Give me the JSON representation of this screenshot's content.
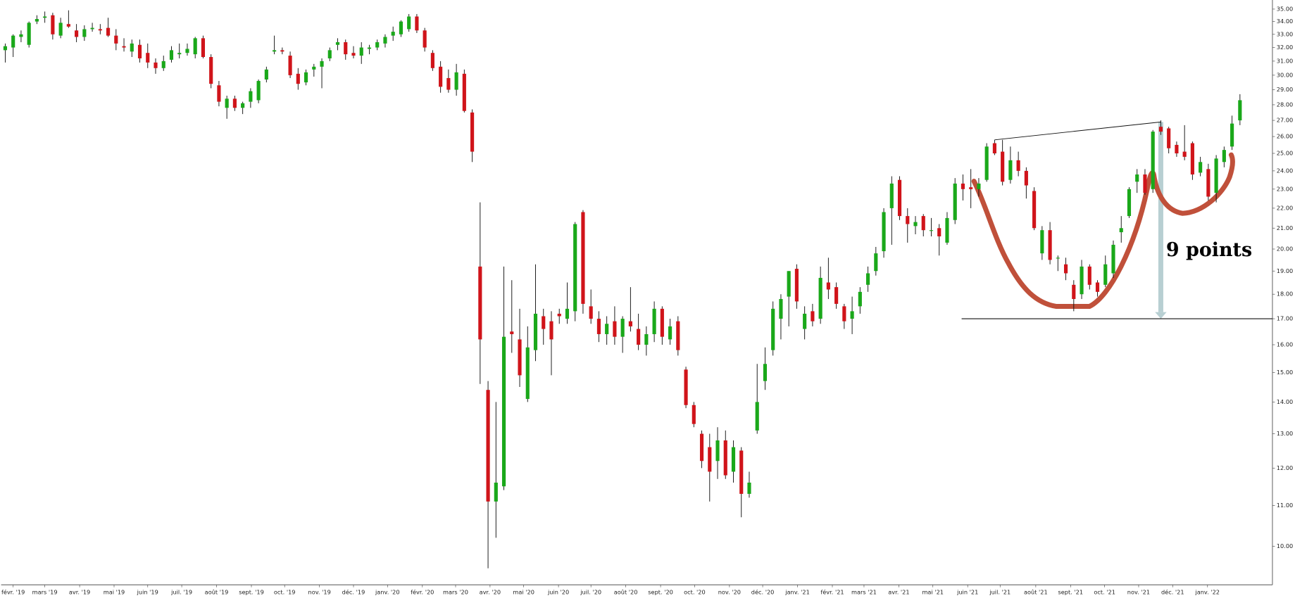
{
  "chart_data": {
    "type": "candlestick",
    "annotation": "9 points",
    "log_scale": true,
    "up_color": "#1aa81a",
    "down_color": "#d0141a",
    "ylim": [
      9.14,
      35.75
    ],
    "yticks": [
      {
        "value": 10,
        "label": "10.00"
      },
      {
        "value": 11,
        "label": "11.00"
      },
      {
        "value": 12,
        "label": "12.00"
      },
      {
        "value": 13,
        "label": "13.00"
      },
      {
        "value": 14,
        "label": "14.00"
      },
      {
        "value": 15,
        "label": "15.00"
      },
      {
        "value": 16,
        "label": "16.00"
      },
      {
        "value": 17,
        "label": "17.00"
      },
      {
        "value": 18,
        "label": "18.00"
      },
      {
        "value": 19,
        "label": "19.00"
      },
      {
        "value": 20,
        "label": "20.00"
      },
      {
        "value": 21,
        "label": "21.00"
      },
      {
        "value": 22,
        "label": "22.00"
      },
      {
        "value": 23,
        "label": "23.00"
      },
      {
        "value": 24,
        "label": "24.00"
      },
      {
        "value": 25,
        "label": "25.00"
      },
      {
        "value": 26,
        "label": "26.00"
      },
      {
        "value": 27,
        "label": "27.00"
      },
      {
        "value": 28,
        "label": "28.00"
      },
      {
        "value": 29,
        "label": "29.00"
      },
      {
        "value": 30,
        "label": "30.00"
      },
      {
        "value": 31,
        "label": "31.00"
      },
      {
        "value": 32,
        "label": "32.00"
      },
      {
        "value": 33,
        "label": "33.00"
      },
      {
        "value": 34,
        "label": "34.00"
      },
      {
        "value": 35,
        "label": "35.00"
      }
    ],
    "xticks": [
      {
        "value": 1,
        "label": "févr. '19"
      },
      {
        "value": 5,
        "label": "mars '19"
      },
      {
        "value": 9.4,
        "label": "avr. '19"
      },
      {
        "value": 13.75,
        "label": "mai '19"
      },
      {
        "value": 18,
        "label": "juin '19"
      },
      {
        "value": 22.3,
        "label": "juil. '19"
      },
      {
        "value": 26.7,
        "label": "août '19"
      },
      {
        "value": 31.1,
        "label": "sept. '19"
      },
      {
        "value": 35.3,
        "label": "oct. '19"
      },
      {
        "value": 39.7,
        "label": "nov. '19"
      },
      {
        "value": 44,
        "label": "déc. '19"
      },
      {
        "value": 48.3,
        "label": "janv. '20"
      },
      {
        "value": 52.7,
        "label": "févr. '20"
      },
      {
        "value": 56.9,
        "label": "mars '20"
      },
      {
        "value": 61.25,
        "label": "avr. '20"
      },
      {
        "value": 65.5,
        "label": "mai '20"
      },
      {
        "value": 69.9,
        "label": "juin '20"
      },
      {
        "value": 74,
        "label": "juil. '20"
      },
      {
        "value": 78.4,
        "label": "août '20"
      },
      {
        "value": 82.8,
        "label": "sept. '20"
      },
      {
        "value": 87.1,
        "label": "oct. '20"
      },
      {
        "value": 91.5,
        "label": "nov. '20"
      },
      {
        "value": 95.7,
        "label": "déc. '20"
      },
      {
        "value": 100.1,
        "label": "janv. '21"
      },
      {
        "value": 104.5,
        "label": "févr. '21"
      },
      {
        "value": 108.5,
        "label": "mars '21"
      },
      {
        "value": 112.9,
        "label": "avr. '21"
      },
      {
        "value": 117.2,
        "label": "mai '21"
      },
      {
        "value": 121.6,
        "label": "juin '21"
      },
      {
        "value": 125.7,
        "label": "juil. '21"
      },
      {
        "value": 130.2,
        "label": "août '21"
      },
      {
        "value": 134.6,
        "label": "sept. '21"
      },
      {
        "value": 138.9,
        "label": "oct. '21"
      },
      {
        "value": 143.2,
        "label": "nov. '21"
      },
      {
        "value": 147.5,
        "label": "déc. '21"
      },
      {
        "value": 151.9,
        "label": "janv. '22"
      }
    ],
    "support": 17,
    "trendline": {
      "start": [
        125,
        25.8
      ],
      "end": [
        146,
        26.9
      ]
    },
    "open": [
      31.8,
      32.0,
      32.8,
      32.2,
      34.0,
      34.3,
      34.5,
      32.9,
      33.8,
      33.3,
      32.8,
      33.4,
      33.4,
      33.5,
      32.9,
      32.1,
      31.7,
      32.2,
      31.6,
      30.9,
      30.5,
      31.1,
      31.5,
      31.6,
      31.5,
      32.7,
      31.3,
      29.3,
      27.8,
      28.4,
      27.8,
      28.2,
      28.3,
      29.7,
      31.7,
      31.8,
      31.4,
      30.1,
      29.5,
      30.4,
      30.6,
      31.2,
      32.2,
      32.4,
      31.6,
      31.4,
      31.9,
      32.0,
      32.3,
      32.9,
      33.0,
      33.4,
      34.4,
      33.3,
      31.6,
      30.6,
      29.8,
      29.0,
      30.1,
      27.5,
      19.2,
      14.4,
      11.1,
      11.5,
      16.5,
      16.2,
      14.1,
      15.8,
      17.1,
      16.9,
      17.2,
      17.0,
      17.3,
      21.8,
      17.5,
      17.0,
      16.4,
      16.9,
      16.3,
      16.9,
      16.6,
      16.0,
      16.4,
      17.4,
      16.2,
      16.9,
      15.1,
      13.9,
      13.0,
      12.6,
      12.2,
      12.8,
      11.9,
      12.5,
      11.3,
      13.1,
      14.7,
      15.8,
      17.0,
      17.9,
      19.1,
      16.6,
      17.3,
      17.0,
      18.5,
      18.3,
      17.5,
      17.0,
      17.5,
      18.4,
      19.0,
      19.9,
      22.0,
      23.5,
      21.6,
      21.1,
      21.6,
      20.9,
      21.0,
      20.3,
      21.4,
      23.3,
      23.1,
      23.0,
      23.5,
      25.6,
      25.1,
      23.5,
      24.6,
      24.0,
      22.9,
      19.8,
      20.9,
      19.6,
      19.3,
      18.4,
      18.0,
      19.2,
      18.5,
      18.4,
      18.9,
      20.8,
      21.6,
      23.4,
      23.8,
      23.0,
      26.6,
      26.5,
      25.5,
      25.1,
      25.6,
      23.9,
      24.1,
      22.8,
      24.5,
      25.4,
      27.0
    ],
    "high": [
      32.3,
      33.0,
      33.3,
      34.0,
      34.5,
      34.8,
      34.7,
      34.3,
      34.9,
      33.8,
      33.7,
      33.9,
      33.8,
      34.3,
      33.4,
      32.7,
      32.6,
      32.6,
      32.3,
      31.2,
      31.4,
      32.1,
      32.3,
      32.3,
      32.8,
      32.9,
      31.5,
      29.6,
      28.6,
      28.6,
      28.2,
      29.1,
      29.7,
      30.6,
      32.9,
      32.0,
      31.7,
      30.5,
      30.4,
      30.8,
      31.2,
      32.0,
      32.7,
      32.6,
      32.1,
      32.4,
      32.2,
      32.6,
      33.0,
      33.6,
      34.1,
      34.6,
      34.6,
      33.5,
      31.8,
      31.0,
      30.4,
      30.8,
      30.4,
      27.7,
      22.3,
      14.7,
      14.0,
      19.2,
      18.6,
      17.4,
      16.7,
      19.3,
      17.4,
      17.3,
      17.4,
      18.5,
      21.3,
      21.9,
      18.2,
      17.3,
      17.1,
      17.5,
      17.1,
      18.3,
      17.2,
      16.7,
      17.7,
      17.5,
      17.0,
      17.1,
      15.2,
      14.0,
      13.1,
      13.0,
      13.2,
      13.1,
      12.8,
      12.6,
      11.9,
      15.3,
      15.9,
      17.7,
      18.0,
      19.0,
      19.3,
      17.5,
      17.6,
      19.2,
      19.6,
      18.5,
      17.6,
      17.9,
      18.3,
      19.2,
      20.1,
      22.0,
      23.7,
      23.7,
      22.0,
      21.6,
      21.7,
      21.5,
      21.2,
      21.8,
      23.6,
      23.8,
      24.1,
      23.6,
      25.6,
      25.8,
      25.8,
      25.4,
      25.1,
      24.2,
      23.1,
      21.1,
      21.3,
      19.7,
      19.6,
      18.6,
      19.5,
      19.3,
      18.6,
      19.7,
      20.4,
      21.6,
      23.1,
      24.1,
      24.1,
      26.4,
      27.0,
      26.6,
      25.7,
      26.7,
      25.7,
      24.8,
      24.4,
      24.9,
      25.4,
      27.3,
      28.7
    ],
    "low": [
      30.9,
      31.3,
      32.4,
      32.0,
      33.8,
      33.9,
      32.6,
      32.7,
      33.5,
      32.4,
      32.5,
      33.2,
      33.0,
      32.8,
      31.8,
      31.7,
      31.3,
      30.9,
      30.5,
      30.1,
      30.3,
      30.9,
      31.2,
      31.4,
      31.2,
      31.2,
      29.1,
      27.9,
      27.1,
      27.6,
      27.4,
      27.8,
      28.1,
      29.5,
      31.5,
      31.5,
      29.8,
      29.0,
      29.3,
      29.9,
      29.1,
      31.0,
      31.8,
      31.1,
      31.2,
      30.8,
      31.5,
      31.8,
      32.0,
      32.5,
      32.8,
      33.2,
      33.1,
      31.7,
      30.3,
      28.8,
      28.8,
      28.6,
      27.5,
      24.5,
      14.6,
      9.5,
      10.2,
      11.4,
      15.7,
      14.5,
      14.0,
      15.4,
      16.0,
      14.9,
      16.8,
      16.8,
      16.9,
      17.2,
      16.8,
      16.1,
      16.0,
      16.0,
      15.7,
      16.5,
      15.8,
      15.6,
      16.1,
      16.0,
      16.0,
      15.6,
      13.8,
      13.2,
      12.0,
      11.1,
      11.7,
      11.7,
      11.6,
      10.7,
      11.2,
      13.0,
      14.4,
      15.6,
      16.2,
      16.7,
      17.4,
      16.2,
      16.7,
      16.8,
      17.8,
      17.4,
      16.6,
      16.4,
      17.2,
      18.1,
      18.8,
      19.6,
      20.2,
      21.4,
      20.3,
      20.7,
      20.6,
      20.6,
      19.7,
      20.2,
      21.2,
      22.4,
      22.0,
      22.6,
      23.4,
      24.9,
      23.2,
      23.3,
      23.7,
      22.5,
      20.9,
      19.5,
      19.3,
      19.0,
      18.6,
      17.3,
      17.8,
      18.2,
      17.9,
      18.3,
      18.7,
      20.3,
      21.5,
      22.8,
      22.7,
      22.8,
      26.1,
      25.0,
      24.8,
      24.6,
      23.5,
      23.7,
      22.4,
      22.3,
      24.2,
      25.2,
      26.7
    ],
    "close": [
      32.1,
      32.9,
      33.0,
      33.9,
      34.2,
      34.4,
      33.0,
      33.9,
      33.6,
      32.8,
      33.4,
      33.5,
      33.3,
      32.9,
      32.3,
      32.0,
      32.3,
      31.2,
      30.9,
      30.5,
      31.0,
      31.8,
      31.6,
      31.9,
      32.7,
      31.3,
      29.4,
      28.2,
      28.4,
      27.8,
      28.1,
      28.9,
      29.6,
      30.4,
      31.8,
      31.7,
      30.0,
      29.4,
      30.2,
      30.6,
      31.0,
      31.8,
      32.4,
      31.5,
      31.4,
      32.0,
      32.0,
      32.4,
      32.8,
      33.2,
      34.0,
      34.4,
      33.3,
      32.0,
      30.5,
      29.2,
      29.0,
      30.2,
      27.6,
      25.1,
      16.2,
      11.1,
      11.6,
      16.3,
      16.4,
      14.9,
      15.9,
      17.2,
      16.6,
      16.2,
      17.1,
      17.4,
      21.2,
      17.6,
      17.0,
      16.4,
      16.8,
      16.3,
      17.0,
      16.7,
      16.0,
      16.4,
      17.4,
      16.3,
      16.7,
      15.8,
      13.9,
      13.3,
      12.2,
      11.9,
      12.8,
      11.8,
      12.6,
      11.3,
      11.6,
      14.0,
      15.3,
      17.4,
      17.8,
      19.0,
      17.7,
      17.2,
      16.9,
      18.7,
      18.2,
      17.6,
      16.9,
      17.3,
      18.1,
      18.9,
      19.8,
      21.8,
      23.3,
      21.6,
      21.2,
      21.3,
      20.9,
      20.9,
      20.6,
      21.5,
      23.3,
      23.0,
      23.0,
      23.3,
      25.4,
      25.0,
      23.4,
      24.6,
      24.0,
      23.2,
      21.0,
      20.9,
      19.5,
      19.6,
      18.9,
      17.8,
      19.2,
      18.4,
      18.1,
      19.3,
      20.2,
      21.0,
      23.0,
      23.8,
      22.8,
      26.3,
      26.3,
      25.3,
      25.0,
      24.8,
      23.8,
      24.5,
      22.6,
      24.7,
      25.2,
      26.8,
      28.3
    ]
  }
}
